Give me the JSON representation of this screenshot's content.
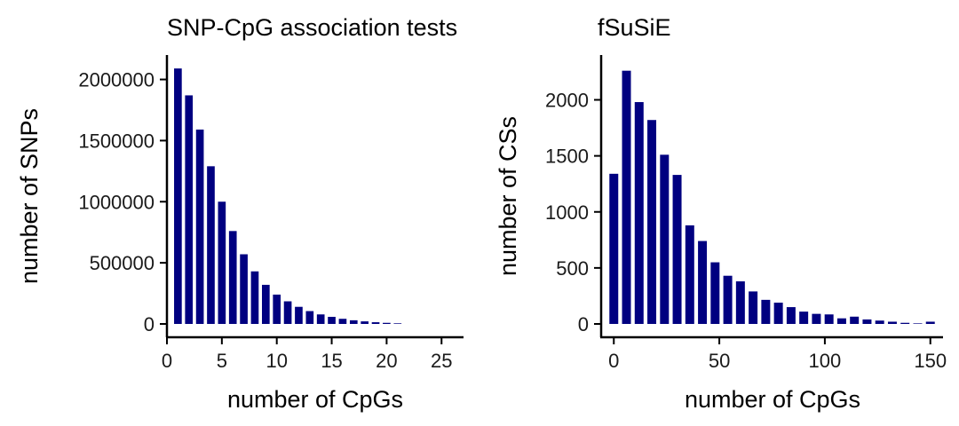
{
  "colors": {
    "bar": "#000080",
    "axis": "#000000",
    "background": "#ffffff"
  },
  "chart_data": [
    {
      "type": "bar",
      "title": "SNP-CpG association tests",
      "xlabel": "number of CpGs",
      "ylabel": "number of SNPs",
      "xlim": [
        0,
        27
      ],
      "ylim": [
        0,
        2200000
      ],
      "xticks": [
        0,
        5,
        10,
        15,
        20,
        25
      ],
      "yticks": [
        0,
        500000,
        1000000,
        1500000,
        2000000
      ],
      "xtick_labels": [
        "0",
        "5",
        "10",
        "15",
        "20",
        "25"
      ],
      "ytick_labels": [
        "0",
        "500000",
        "1000000",
        "1500000",
        "2000000"
      ],
      "bar_width": 0.7,
      "x": [
        1,
        2,
        3,
        4,
        5,
        6,
        7,
        8,
        9,
        10,
        11,
        12,
        13,
        14,
        15,
        16,
        17,
        18,
        19,
        20,
        21
      ],
      "values": [
        2090000,
        1870000,
        1590000,
        1290000,
        1000000,
        760000,
        570000,
        430000,
        320000,
        240000,
        185000,
        140000,
        105000,
        78000,
        58000,
        42000,
        30000,
        21000,
        14000,
        9000,
        5000
      ]
    },
    {
      "type": "bar",
      "title": "fSuSiE",
      "xlabel": "number of CpGs",
      "ylabel": "number of CSs",
      "xlim": [
        -6,
        156
      ],
      "ylim": [
        0,
        2400
      ],
      "xticks": [
        0,
        50,
        100,
        150
      ],
      "yticks": [
        0,
        500,
        1000,
        1500,
        2000
      ],
      "xtick_labels": [
        "0",
        "50",
        "100",
        "150"
      ],
      "ytick_labels": [
        "0",
        "500",
        "1000",
        "1500",
        "2000"
      ],
      "bar_width": 4.2,
      "x": [
        0,
        6,
        12,
        18,
        24,
        30,
        36,
        42,
        48,
        54,
        60,
        66,
        72,
        78,
        84,
        90,
        96,
        102,
        108,
        114,
        120,
        126,
        132,
        138,
        144,
        150
      ],
      "values": [
        1340,
        2260,
        1980,
        1820,
        1510,
        1330,
        880,
        740,
        550,
        430,
        380,
        290,
        215,
        190,
        150,
        110,
        90,
        85,
        50,
        65,
        40,
        30,
        20,
        10,
        5,
        20
      ]
    }
  ]
}
